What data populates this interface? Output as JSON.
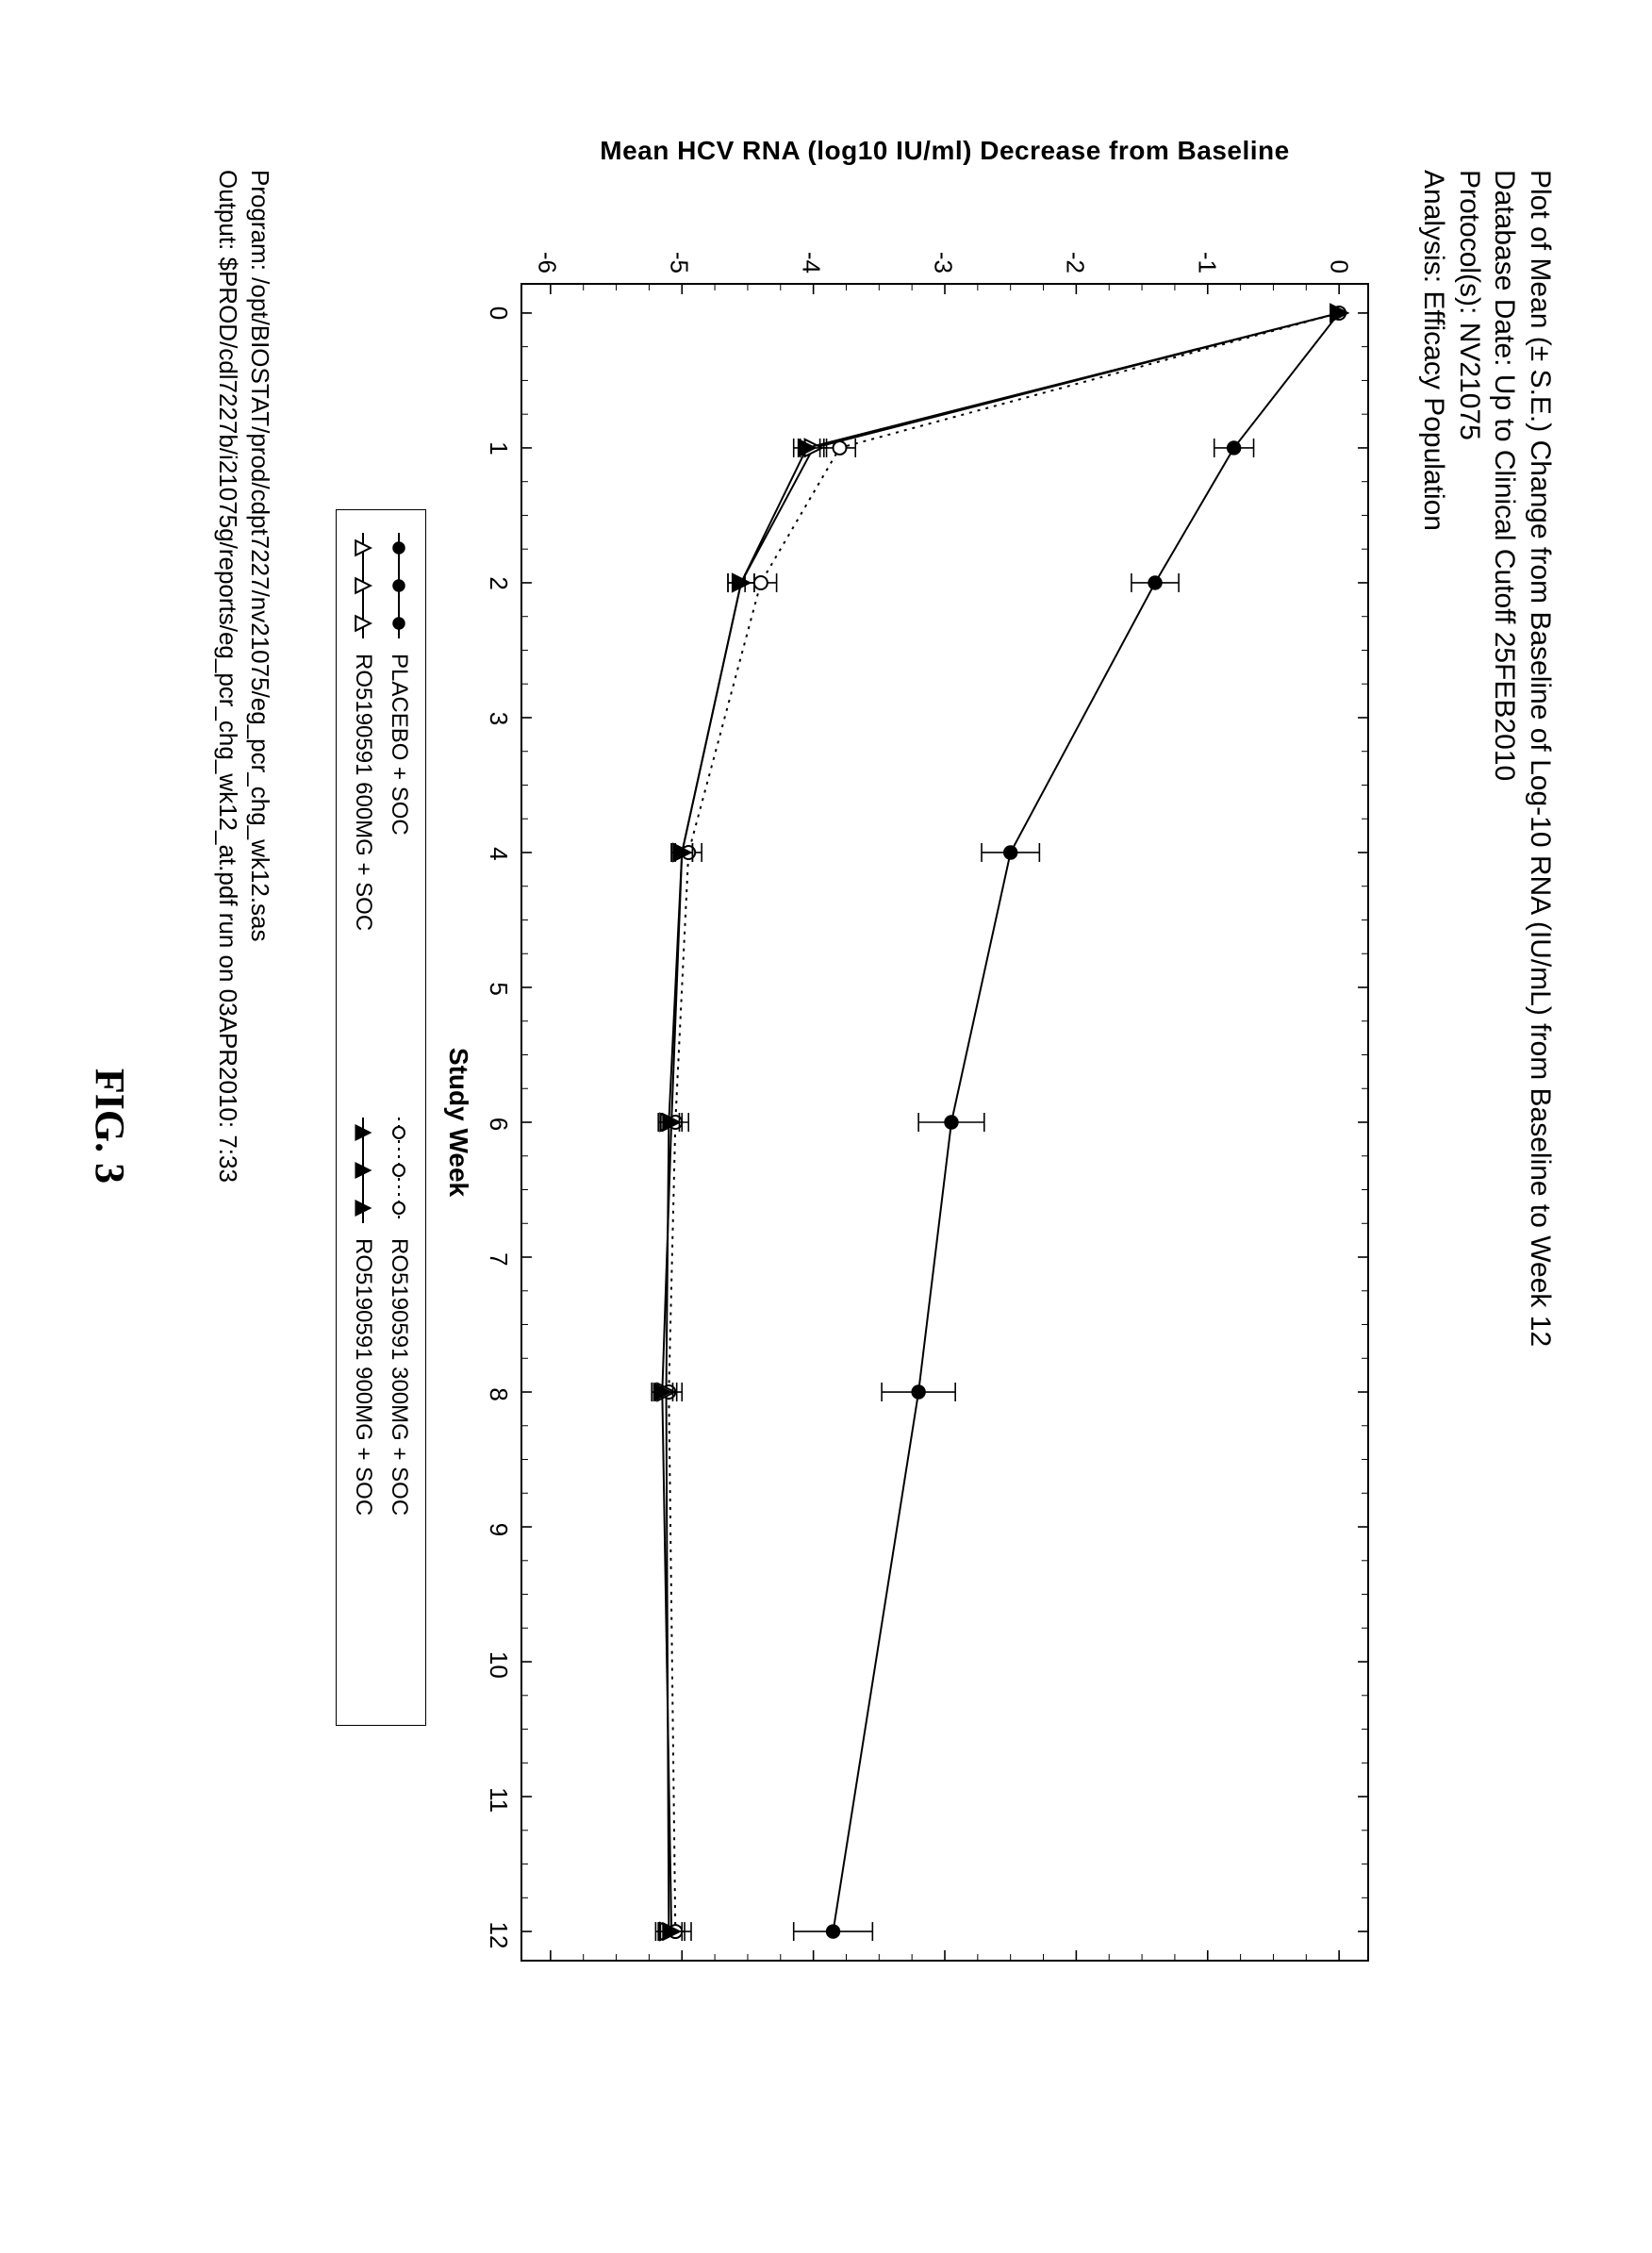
{
  "header": {
    "line1": "Plot of Mean (± S.E.) Change from Baseline of Log-10 RNA (IU/mL) from Baseline to Week 12",
    "line2": "Database Date: Up to Clinical Cutoff 25FEB2010",
    "line3": "Protocol(s): NV21075",
    "line4": "Analysis: Efficacy Population"
  },
  "chart": {
    "type": "line",
    "xlabel": "Study Week",
    "ylabel": "Mean HCV RNA (log10 IU/ml) Decrease from Baseline",
    "xlim": [
      0,
      12
    ],
    "ylim": [
      -6,
      0
    ],
    "xticks": [
      0,
      1,
      2,
      3,
      4,
      5,
      6,
      7,
      8,
      9,
      10,
      11,
      12
    ],
    "yticks": [
      0,
      -1,
      -2,
      -3,
      -4,
      -5,
      -6
    ],
    "x_minor_step": 0.25,
    "y_minor_step": 0.25,
    "frame_color": "#000000",
    "background_color": "#ffffff",
    "series": [
      {
        "name": "PLACEBO + SOC",
        "marker": "circle",
        "color": "#000000",
        "linestyle": "solid",
        "x": [
          0,
          1,
          2,
          4,
          6,
          8,
          12
        ],
        "y": [
          0.0,
          -0.8,
          -1.4,
          -2.5,
          -2.95,
          -3.2,
          -3.85
        ],
        "err": [
          0.0,
          0.15,
          0.18,
          0.22,
          0.25,
          0.28,
          0.3
        ]
      },
      {
        "name": "RO5190591 300MG + SOC",
        "marker": "circle-open",
        "color": "#000000",
        "linestyle": "dotted",
        "x": [
          0,
          1,
          2,
          4,
          6,
          8,
          12
        ],
        "y": [
          0.0,
          -3.8,
          -4.4,
          -4.95,
          -5.05,
          -5.1,
          -5.05
        ],
        "err": [
          0.0,
          0.12,
          0.12,
          0.1,
          0.1,
          0.1,
          0.12
        ]
      },
      {
        "name": "RO5190591 600MG + SOC",
        "marker": "triangle-open",
        "color": "#000000",
        "linestyle": "solid",
        "x": [
          0,
          1,
          2,
          4,
          6,
          8,
          12
        ],
        "y": [
          0.0,
          -4.0,
          -4.55,
          -5.0,
          -5.1,
          -5.12,
          -5.1
        ],
        "err": [
          0.0,
          0.1,
          0.1,
          0.08,
          0.08,
          0.08,
          0.1
        ]
      },
      {
        "name": "RO5190591 900MG + SOC",
        "marker": "triangle",
        "color": "#000000",
        "linestyle": "solid",
        "x": [
          0,
          1,
          2,
          4,
          6,
          8,
          12
        ],
        "y": [
          0.0,
          -4.05,
          -4.55,
          -5.0,
          -5.08,
          -5.15,
          -5.08
        ],
        "err": [
          0.0,
          0.1,
          0.1,
          0.08,
          0.08,
          0.08,
          0.1
        ]
      }
    ],
    "legend": [
      {
        "label": "PLACEBO + SOC",
        "marker": "circle",
        "linestyle": "solid"
      },
      {
        "label": "RO5190591 300MG + SOC",
        "marker": "circle-open",
        "linestyle": "dotted"
      },
      {
        "label": "RO5190591 600MG + SOC",
        "marker": "triangle-open",
        "linestyle": "solid"
      },
      {
        "label": "RO5190591 900MG + SOC",
        "marker": "triangle",
        "linestyle": "solid"
      }
    ]
  },
  "footer": {
    "line1": "Program: /opt/BIOSTAT/prod/cdpt7227/nv21075/eg_pcr_chg_wk12.sas",
    "line2": "Output: $PROD/cdl7227b/i21075g/reports/eg_pcr_chg_wk12_at.pdf run on 03APR2010: 7:33"
  },
  "figure_caption": "FIG. 3"
}
